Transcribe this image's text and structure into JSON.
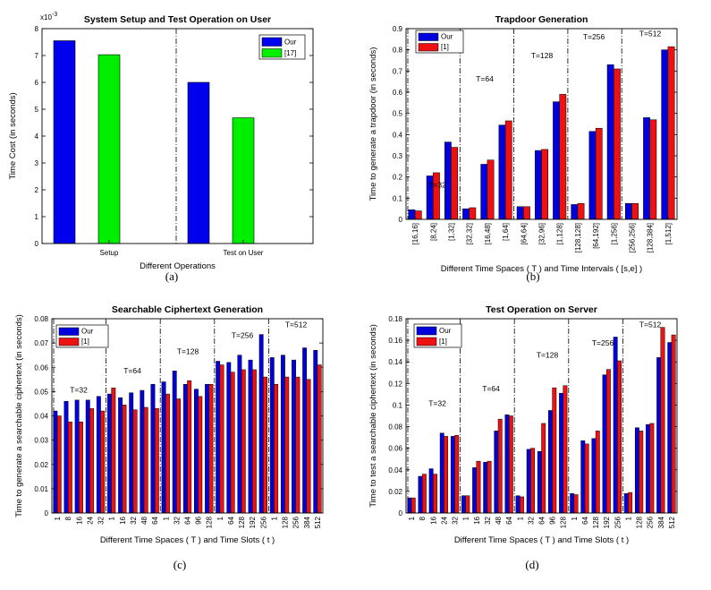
{
  "chart_data": [
    {
      "type": "bar",
      "title": "System Setup and Test Operation on User",
      "xlabel": "Different Operations",
      "ylabel": "Time Cost (in seconds)",
      "y_exponent": "x10^-3",
      "ylim": [
        0,
        8
      ],
      "yticks": [
        "0",
        "1",
        "2",
        "3",
        "4",
        "5",
        "6",
        "7",
        "8"
      ],
      "categories": [
        "Setup",
        "Test on User"
      ],
      "series": [
        {
          "name": "Our",
          "color": "#0000ee",
          "values": [
            7.55,
            6.0
          ]
        },
        {
          "name": "[17]",
          "color": "#00ee00",
          "values": [
            7.03,
            4.68
          ]
        }
      ],
      "caption": "(a)"
    },
    {
      "type": "bar",
      "title": "Trapdoor Generation",
      "xlabel": "Different Time Spaces ( T ) and Time Intervals ( [s,e] )",
      "ylabel": "Time to generate a trapdoor (in seconds)",
      "ylim": [
        0,
        0.9
      ],
      "yticks": [
        "0",
        "0.1",
        "0.2",
        "0.3",
        "0.4",
        "0.5",
        "0.6",
        "0.7",
        "0.8",
        "0.9"
      ],
      "categories": [
        "[16,16]",
        "[8,24]",
        "[1,32]",
        "[32,32]",
        "[16,48]",
        "[1,64]",
        "[64,64]",
        "[32,96]",
        "[1,128]",
        "[128,128]",
        "[64,192]",
        "[1,256]",
        "[256,256]",
        "[128,384]",
        "[1,512]"
      ],
      "groups": [
        "T=32",
        "T=64",
        "T=128",
        "T=256",
        "T=512"
      ],
      "series": [
        {
          "name": "Our",
          "color": "#0000dd",
          "values": [
            0.045,
            0.205,
            0.365,
            0.05,
            0.26,
            0.445,
            0.06,
            0.325,
            0.555,
            0.07,
            0.415,
            0.73,
            0.075,
            0.48,
            0.8
          ]
        },
        {
          "name": "[1]",
          "color": "#ee1111",
          "values": [
            0.04,
            0.22,
            0.34,
            0.055,
            0.28,
            0.465,
            0.06,
            0.33,
            0.59,
            0.075,
            0.43,
            0.71,
            0.075,
            0.47,
            0.815
          ]
        }
      ],
      "caption": "(b)"
    },
    {
      "type": "bar",
      "title": "Searchable Ciphertext Generation",
      "xlabel": "Different Time Spaces ( T ) and Time Slots ( t )",
      "ylabel": "Time to generate a searchable ciphertext (in seconds)",
      "ylim": [
        0,
        0.08
      ],
      "yticks": [
        "0",
        "0.01",
        "0.02",
        "0.03",
        "0.04",
        "0.05",
        "0.06",
        "0.07",
        "0.08"
      ],
      "categories": [
        "1",
        "8",
        "16",
        "24",
        "32",
        "1",
        "16",
        "32",
        "48",
        "64",
        "1",
        "32",
        "64",
        "96",
        "128",
        "1",
        "64",
        "128",
        "192",
        "256",
        "1",
        "128",
        "256",
        "384",
        "512"
      ],
      "groups": [
        "T=32",
        "T=64",
        "T=128",
        "T=256",
        "T=512"
      ],
      "series": [
        {
          "name": "Our",
          "color": "#0000dd",
          "values": [
            0.042,
            0.046,
            0.0465,
            0.0465,
            0.048,
            0.049,
            0.0475,
            0.0495,
            0.0505,
            0.053,
            0.054,
            0.0585,
            0.053,
            0.051,
            0.053,
            0.0625,
            0.062,
            0.065,
            0.063,
            0.0735,
            0.064,
            0.065,
            0.063,
            0.068,
            0.067
          ]
        },
        {
          "name": "[1]",
          "color": "#ee1111",
          "values": [
            0.04,
            0.0375,
            0.0375,
            0.043,
            0.042,
            0.0515,
            0.0445,
            0.0425,
            0.0435,
            0.043,
            0.049,
            0.047,
            0.0545,
            0.048,
            0.053,
            0.061,
            0.058,
            0.059,
            0.059,
            0.056,
            0.053,
            0.056,
            0.056,
            0.055,
            0.061
          ]
        }
      ],
      "caption": "(c)"
    },
    {
      "type": "bar",
      "title": "Test Operation on Server",
      "xlabel": "Different Time Spaces ( T ) and Time Slots ( t )",
      "ylabel": "Time to test a searchable ciphertext (in seconds)",
      "ylim": [
        0,
        0.18
      ],
      "yticks": [
        "0",
        "0.02",
        "0.04",
        "0.06",
        "0.08",
        "0.1",
        "0.12",
        "0.14",
        "0.16",
        "0.18"
      ],
      "categories": [
        "1",
        "8",
        "16",
        "24",
        "32",
        "1",
        "16",
        "32",
        "48",
        "64",
        "1",
        "32",
        "64",
        "96",
        "128",
        "1",
        "64",
        "128",
        "192",
        "256",
        "1",
        "128",
        "256",
        "384",
        "512"
      ],
      "groups": [
        "T=32",
        "T=64",
        "T=128",
        "T=256",
        "T=512"
      ],
      "series": [
        {
          "name": "Our",
          "color": "#0000dd",
          "values": [
            0.014,
            0.034,
            0.041,
            0.074,
            0.071,
            0.016,
            0.042,
            0.047,
            0.076,
            0.091,
            0.016,
            0.059,
            0.057,
            0.095,
            0.111,
            0.018,
            0.067,
            0.069,
            0.128,
            0.163,
            0.018,
            0.079,
            0.082,
            0.144,
            0.158
          ]
        },
        {
          "name": "[1]",
          "color": "#ee1111",
          "values": [
            0.014,
            0.036,
            0.036,
            0.071,
            0.072,
            0.016,
            0.048,
            0.048,
            0.087,
            0.09,
            0.015,
            0.06,
            0.083,
            0.116,
            0.118,
            0.017,
            0.064,
            0.076,
            0.133,
            0.141,
            0.019,
            0.076,
            0.083,
            0.172,
            0.165
          ]
        }
      ],
      "caption": "(d)"
    }
  ]
}
